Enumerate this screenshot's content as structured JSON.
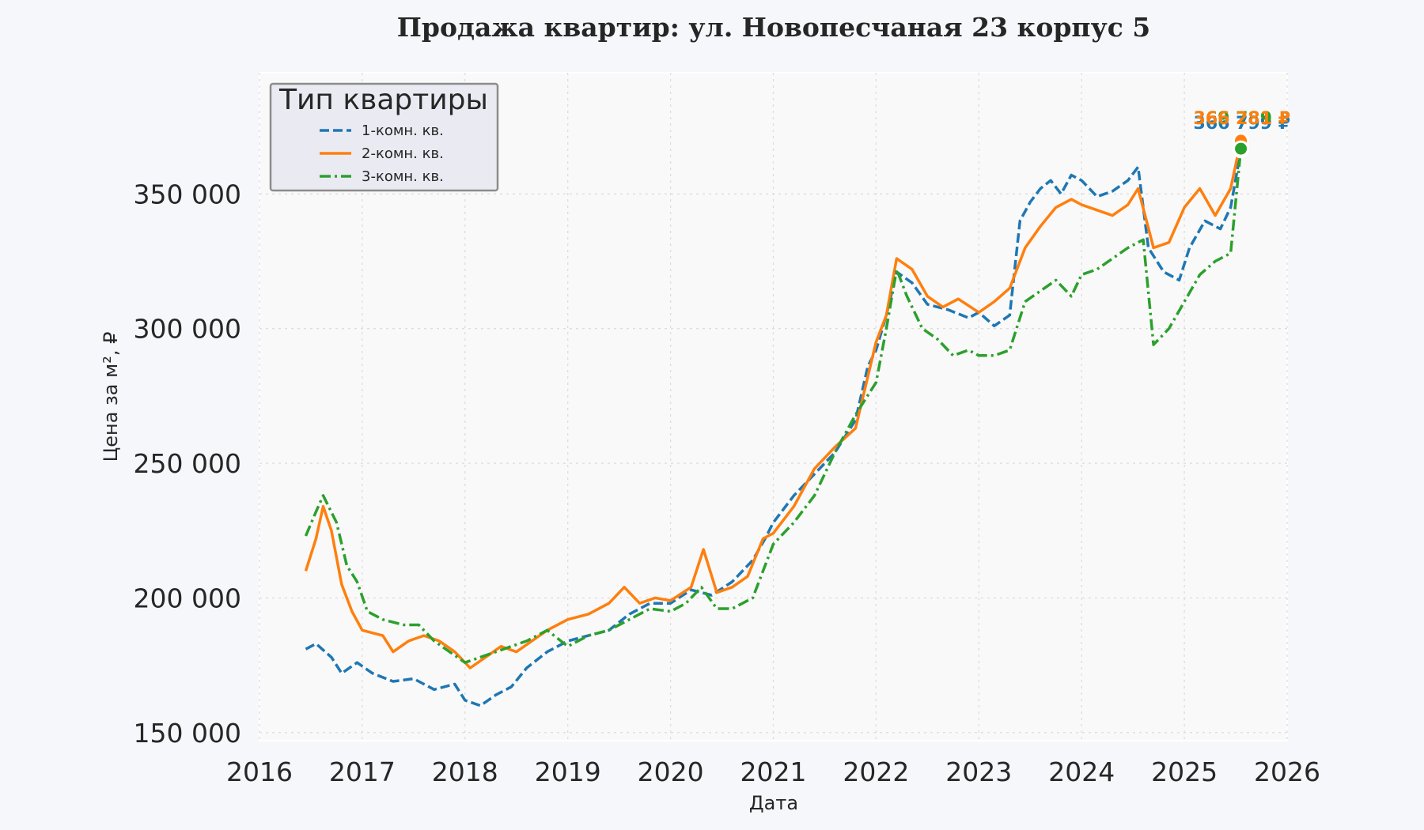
{
  "chart_data": {
    "type": "line",
    "title": "Продажа квартир: ул. Новопесчаная 23 корпус 5",
    "xlabel": "Дата",
    "ylabel": "Цена за м², ₽",
    "xlim": [
      2016,
      2026
    ],
    "ylim": [
      147000,
      395000
    ],
    "x_ticks": [
      "2016",
      "2017",
      "2018",
      "2019",
      "2020",
      "2021",
      "2022",
      "2023",
      "2024",
      "2025",
      "2026"
    ],
    "y_ticks": [
      150000,
      200000,
      250000,
      300000,
      350000
    ],
    "y_tick_labels": [
      "150 000",
      "200 000",
      "250 000",
      "300 000",
      "350 000"
    ],
    "grid": true,
    "legend": {
      "title": "Тип квартиры",
      "placement": "top-left"
    },
    "series": [
      {
        "name": "1-комн. кв.",
        "color": "#1f77b4",
        "style": "dashed",
        "x": [
          2016.45,
          2016.55,
          2016.7,
          2016.8,
          2016.95,
          2017.1,
          2017.3,
          2017.5,
          2017.7,
          2017.9,
          2018.0,
          2018.15,
          2018.3,
          2018.45,
          2018.6,
          2018.8,
          2019.0,
          2019.2,
          2019.4,
          2019.6,
          2019.8,
          2020.0,
          2020.2,
          2020.4,
          2020.6,
          2020.8,
          2020.92,
          2021.0,
          2021.2,
          2021.4,
          2021.6,
          2021.8,
          2021.92,
          2022.0,
          2022.1,
          2022.2,
          2022.35,
          2022.5,
          2022.7,
          2022.9,
          2023.0,
          2023.15,
          2023.3,
          2023.4,
          2023.5,
          2023.6,
          2023.7,
          2023.8,
          2023.9,
          2024.0,
          2024.15,
          2024.3,
          2024.45,
          2024.55,
          2024.65,
          2024.8,
          2024.95,
          2025.05,
          2025.2,
          2025.35,
          2025.45,
          2025.55
        ],
        "values": [
          181000,
          183000,
          178000,
          172000,
          176000,
          172000,
          169000,
          170000,
          166000,
          168000,
          162000,
          160000,
          164000,
          167000,
          174000,
          180000,
          184000,
          186000,
          188000,
          194000,
          198000,
          198000,
          203000,
          201000,
          206000,
          214000,
          222000,
          228000,
          238000,
          246000,
          254000,
          266000,
          286000,
          292000,
          305000,
          321000,
          317000,
          309000,
          307000,
          304000,
          306000,
          301000,
          305000,
          340000,
          347000,
          352000,
          355000,
          350000,
          357000,
          355000,
          349000,
          351000,
          355000,
          360000,
          330000,
          321000,
          318000,
          330000,
          340000,
          337000,
          345000,
          366281
        ]
      },
      {
        "name": "2-комн. кв.",
        "color": "#ff7f0e",
        "style": "solid",
        "x": [
          2016.45,
          2016.55,
          2016.62,
          2016.7,
          2016.8,
          2016.9,
          2017.0,
          2017.2,
          2017.3,
          2017.45,
          2017.6,
          2017.75,
          2017.9,
          2018.05,
          2018.2,
          2018.35,
          2018.5,
          2018.65,
          2018.8,
          2019.0,
          2019.2,
          2019.4,
          2019.55,
          2019.7,
          2019.85,
          2020.0,
          2020.2,
          2020.32,
          2020.45,
          2020.6,
          2020.75,
          2020.9,
          2021.0,
          2021.2,
          2021.4,
          2021.6,
          2021.8,
          2022.0,
          2022.1,
          2022.2,
          2022.35,
          2022.5,
          2022.65,
          2022.8,
          2023.0,
          2023.15,
          2023.3,
          2023.45,
          2023.6,
          2023.75,
          2023.9,
          2024.0,
          2024.15,
          2024.3,
          2024.45,
          2024.55,
          2024.7,
          2024.85,
          2025.0,
          2025.15,
          2025.3,
          2025.45,
          2025.55
        ],
        "values": [
          210000,
          222000,
          234000,
          225000,
          205000,
          195000,
          188000,
          186000,
          180000,
          184000,
          186000,
          184000,
          180000,
          174000,
          178000,
          182000,
          180000,
          184000,
          188000,
          192000,
          194000,
          198000,
          204000,
          198000,
          200000,
          199000,
          204000,
          218000,
          202000,
          204000,
          208000,
          222000,
          224000,
          234000,
          248000,
          256000,
          263000,
          295000,
          305000,
          326000,
          322000,
          312000,
          308000,
          311000,
          306000,
          310000,
          315000,
          330000,
          338000,
          345000,
          348000,
          346000,
          344000,
          342000,
          346000,
          352000,
          330000,
          332000,
          345000,
          352000,
          342000,
          352000,
          369789
        ]
      },
      {
        "name": "3-комн. кв.",
        "color": "#2ca02c",
        "style": "dashdot",
        "x": [
          2016.45,
          2016.55,
          2016.62,
          2016.75,
          2016.85,
          2016.95,
          2017.05,
          2017.2,
          2017.4,
          2017.55,
          2017.7,
          2017.85,
          2018.0,
          2018.15,
          2018.3,
          2018.45,
          2018.6,
          2018.8,
          2019.0,
          2019.2,
          2019.4,
          2019.6,
          2019.8,
          2020.0,
          2020.15,
          2020.3,
          2020.45,
          2020.6,
          2020.8,
          2021.0,
          2021.2,
          2021.4,
          2021.6,
          2021.8,
          2022.0,
          2022.1,
          2022.2,
          2022.3,
          2022.45,
          2022.6,
          2022.75,
          2022.9,
          2023.0,
          2023.15,
          2023.3,
          2023.45,
          2023.6,
          2023.75,
          2023.9,
          2024.0,
          2024.15,
          2024.3,
          2024.45,
          2024.6,
          2024.7,
          2024.85,
          2025.0,
          2025.15,
          2025.3,
          2025.45,
          2025.55
        ],
        "values": [
          223000,
          232000,
          238000,
          228000,
          212000,
          206000,
          195000,
          192000,
          190000,
          190000,
          184000,
          180000,
          176000,
          178000,
          180000,
          182000,
          184000,
          188000,
          182000,
          186000,
          188000,
          192000,
          196000,
          195000,
          198000,
          204000,
          196000,
          196000,
          200000,
          220000,
          228000,
          238000,
          254000,
          268000,
          280000,
          300000,
          322000,
          312000,
          300000,
          296000,
          290000,
          292000,
          290000,
          290000,
          292000,
          310000,
          314000,
          318000,
          312000,
          320000,
          322000,
          326000,
          330000,
          333000,
          294000,
          300000,
          310000,
          320000,
          325000,
          328000,
          366799
        ]
      }
    ],
    "end_labels": [
      "366 799 ₽",
      "369 789 ₽",
      "366 281 ₽"
    ]
  }
}
